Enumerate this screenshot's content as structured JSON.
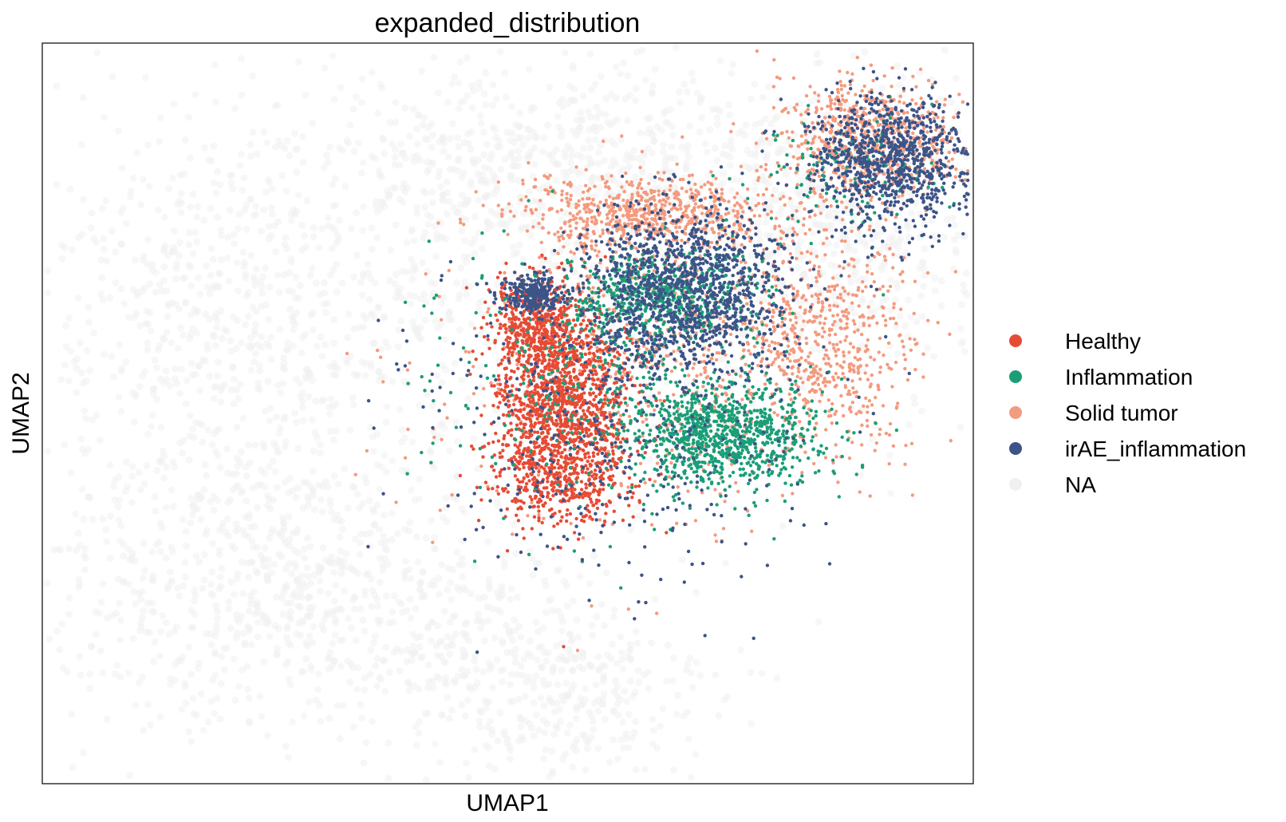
{
  "chart_data": {
    "type": "scatter",
    "title": "expanded_distribution",
    "xlabel": "UMAP1",
    "ylabel": "UMAP2",
    "grid": false,
    "xlim": [
      0,
      100
    ],
    "ylim": [
      0,
      100
    ],
    "legend_position": "right",
    "series": [
      {
        "name": "Healthy",
        "color": "#e64b35"
      },
      {
        "name": "Inflammation",
        "color": "#1b9e77"
      },
      {
        "name": "Solid tumor",
        "color": "#f39b7f"
      },
      {
        "name": "irAE_inflammation",
        "color": "#3c5488"
      },
      {
        "name": "NA",
        "color": "#f0f0f0"
      }
    ],
    "clusters": [
      {
        "series": "NA",
        "cx": 28,
        "cy": 27,
        "sx": 16,
        "sy": 10,
        "n": 900
      },
      {
        "series": "NA",
        "cx": 20,
        "cy": 62,
        "sx": 11,
        "sy": 15,
        "n": 650
      },
      {
        "series": "NA",
        "cx": 55,
        "cy": 12,
        "sx": 9,
        "sy": 7,
        "n": 350
      },
      {
        "series": "NA",
        "cx": 60,
        "cy": 72,
        "sx": 22,
        "sy": 14,
        "n": 1100
      },
      {
        "series": "NA",
        "cx": 54,
        "cy": 85,
        "sx": 10,
        "sy": 5,
        "n": 300
      },
      {
        "series": "NA",
        "cx": 86,
        "cy": 78,
        "sx": 10,
        "sy": 8,
        "n": 450
      },
      {
        "series": "Healthy",
        "cx": 53,
        "cy": 62,
        "sx": 2.5,
        "sy": 3,
        "n": 420
      },
      {
        "series": "Healthy",
        "cx": 56,
        "cy": 51,
        "sx": 3.5,
        "sy": 6.5,
        "n": 1300
      },
      {
        "series": "Healthy",
        "cx": 55,
        "cy": 41,
        "sx": 4,
        "sy": 3,
        "n": 300
      },
      {
        "series": "irAE_inflammation",
        "cx": 52.5,
        "cy": 66,
        "sx": 1.5,
        "sy": 1.3,
        "n": 250
      },
      {
        "series": "irAE_inflammation",
        "cx": 69,
        "cy": 67,
        "sx": 5.5,
        "sy": 5,
        "n": 1200
      },
      {
        "series": "irAE_inflammation",
        "cx": 91,
        "cy": 84,
        "sx": 4.5,
        "sy": 4.5,
        "n": 950
      },
      {
        "series": "irAE_inflammation",
        "cx": 62,
        "cy": 50,
        "sx": 11,
        "sy": 11,
        "n": 500
      },
      {
        "series": "Inflammation",
        "cx": 66,
        "cy": 66,
        "sx": 5,
        "sy": 3,
        "n": 500
      },
      {
        "series": "Inflammation",
        "cx": 73,
        "cy": 47,
        "sx": 5,
        "sy": 3.5,
        "n": 900
      },
      {
        "series": "Inflammation",
        "cx": 62,
        "cy": 55,
        "sx": 10,
        "sy": 9,
        "n": 350
      },
      {
        "series": "Inflammation",
        "cx": 87,
        "cy": 82,
        "sx": 6,
        "sy": 4,
        "n": 120
      },
      {
        "series": "Solid tumor",
        "cx": 65,
        "cy": 77,
        "sx": 7,
        "sy": 2.5,
        "n": 650
      },
      {
        "series": "Solid tumor",
        "cx": 89,
        "cy": 87,
        "sx": 5,
        "sy": 4,
        "n": 700
      },
      {
        "series": "Solid tumor",
        "cx": 84,
        "cy": 60,
        "sx": 4.5,
        "sy": 7,
        "n": 550
      },
      {
        "series": "Solid tumor",
        "cx": 66,
        "cy": 58,
        "sx": 11,
        "sy": 11,
        "n": 700
      }
    ],
    "outliers": [
      {
        "series": "Solid tumor",
        "x": 36,
        "y": 58.5
      },
      {
        "series": "Inflammation",
        "x": 39,
        "y": 65
      },
      {
        "series": "Inflammation",
        "x": 41,
        "y": 64.5
      },
      {
        "series": "Inflammation",
        "x": 42.5,
        "y": 56.5
      },
      {
        "series": "irAE_inflammation",
        "x": 35,
        "y": 32
      },
      {
        "series": "irAE_inflammation",
        "x": 53,
        "y": 29
      },
      {
        "series": "Healthy",
        "x": 56,
        "y": 18.5
      },
      {
        "series": "Solid tumor",
        "x": 57.5,
        "y": 18
      },
      {
        "series": "Solid tumor",
        "x": 38,
        "y": 38
      },
      {
        "series": "Solid tumor",
        "x": 39,
        "y": 44
      },
      {
        "series": "Inflammation",
        "x": 58,
        "y": 30
      },
      {
        "series": "Solid tumor",
        "x": 59,
        "y": 24
      },
      {
        "series": "Solid tumor",
        "x": 66,
        "y": 23
      },
      {
        "series": "Inflammation",
        "x": 61,
        "y": 32
      },
      {
        "series": "Solid tumor",
        "x": 44,
        "y": 39
      },
      {
        "series": "irAE_inflammation",
        "x": 95,
        "y": 82
      },
      {
        "series": "Solid tumor",
        "x": 95.5,
        "y": 87
      }
    ]
  }
}
